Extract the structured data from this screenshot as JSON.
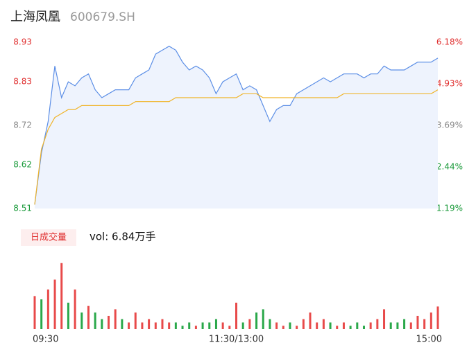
{
  "chart_data": {
    "type": "intraday",
    "title": "上海凤凰",
    "subtitle": "600679.SH",
    "categories": [
      "09:30",
      null,
      null,
      null,
      null,
      null,
      null,
      null,
      null,
      null,
      null,
      null,
      null,
      null,
      null,
      null,
      null,
      null,
      null,
      null,
      null,
      null,
      null,
      null,
      null,
      null,
      null,
      null,
      null,
      null,
      "11:30/13:00",
      null,
      null,
      null,
      null,
      null,
      null,
      null,
      null,
      null,
      null,
      null,
      null,
      null,
      null,
      null,
      null,
      null,
      null,
      null,
      null,
      null,
      null,
      null,
      null,
      null,
      null,
      null,
      null,
      null,
      "15:00"
    ],
    "series": [
      {
        "color": "#5b8ee6",
        "values": [
          8.52,
          8.65,
          8.73,
          8.87,
          8.79,
          8.83,
          8.82,
          8.84,
          8.85,
          8.81,
          8.79,
          8.8,
          8.81,
          8.81,
          8.81,
          8.84,
          8.85,
          8.86,
          8.9,
          8.91,
          8.92,
          8.91,
          8.88,
          8.86,
          8.87,
          8.86,
          8.84,
          8.8,
          8.83,
          8.84,
          8.85,
          8.81,
          8.82,
          8.81,
          8.77,
          8.73,
          8.76,
          8.77,
          8.77,
          8.8,
          8.81,
          8.82,
          8.83,
          8.84,
          8.83,
          8.84,
          8.85,
          8.85,
          8.85,
          8.84,
          8.85,
          8.85,
          8.87,
          8.86,
          8.86,
          8.86,
          8.87,
          8.88,
          8.88,
          8.88,
          8.89
        ]
      },
      {
        "color": "#f0b429",
        "values": [
          8.52,
          8.66,
          8.71,
          8.74,
          8.75,
          8.76,
          8.76,
          8.77,
          8.77,
          8.77,
          8.77,
          8.77,
          8.77,
          8.77,
          8.77,
          8.78,
          8.78,
          8.78,
          8.78,
          8.78,
          8.78,
          8.79,
          8.79,
          8.79,
          8.79,
          8.79,
          8.79,
          8.79,
          8.79,
          8.79,
          8.79,
          8.8,
          8.8,
          8.8,
          8.79,
          8.79,
          8.79,
          8.79,
          8.79,
          8.79,
          8.79,
          8.79,
          8.79,
          8.79,
          8.79,
          8.79,
          8.8,
          8.8,
          8.8,
          8.8,
          8.8,
          8.8,
          8.8,
          8.8,
          8.8,
          8.8,
          8.8,
          8.8,
          8.8,
          8.8,
          8.81
        ]
      }
    ],
    "ylim": [
      8.51,
      8.93
    ],
    "yticks": [
      8.93,
      8.83,
      8.72,
      8.62,
      8.51
    ],
    "ytick_colors": [
      "#e03030",
      "#e03030",
      "#888888",
      "#1a9a3a",
      "#1a9a3a"
    ],
    "y2lim": [
      1.19,
      6.18
    ],
    "y2ticks": [
      {
        "value": 6.18,
        "label": "6.18%"
      },
      {
        "value": 4.93,
        "label": "4.93%"
      },
      {
        "value": 3.69,
        "label": "3.69%"
      },
      {
        "value": 2.44,
        "label": "2.44%"
      },
      {
        "value": 1.19,
        "label": "1.19%"
      }
    ],
    "volume_button": "日成交量",
    "volume_label": "vol: 6.84万手",
    "volume_ylim": [
      0,
      21
    ],
    "volume": [
      10,
      9,
      12,
      15,
      20,
      8,
      12,
      5,
      7,
      5,
      3,
      4,
      6,
      3,
      2,
      5,
      2,
      3,
      2,
      3,
      2,
      2,
      1,
      2,
      1,
      2,
      2,
      3,
      2,
      1,
      8,
      2,
      3,
      5,
      6,
      3,
      2,
      1,
      2,
      1,
      3,
      5,
      2,
      3,
      2,
      1,
      2,
      1,
      2,
      1,
      2,
      3,
      6,
      2,
      2,
      3,
      2,
      4,
      3,
      5,
      6.84
    ],
    "volume_colors": [
      "#e84a4a",
      "#2aa84a",
      "#e84a4a",
      "#e84a4a",
      "#e84a4a",
      "#2aa84a",
      "#e84a4a",
      "#2aa84a",
      "#e84a4a",
      "#2aa84a",
      "#2aa84a",
      "#e84a4a",
      "#e84a4a",
      "#2aa84a",
      "#e84a4a",
      "#e84a4a",
      "#e84a4a",
      "#e84a4a",
      "#e84a4a",
      "#e84a4a",
      "#e84a4a",
      "#2aa84a",
      "#2aa84a",
      "#2aa84a",
      "#e84a4a",
      "#2aa84a",
      "#2aa84a",
      "#2aa84a",
      "#e84a4a",
      "#e84a4a",
      "#e84a4a",
      "#2aa84a",
      "#e84a4a",
      "#2aa84a",
      "#2aa84a",
      "#2aa84a",
      "#e84a4a",
      "#e84a4a",
      "#2aa84a",
      "#e84a4a",
      "#e84a4a",
      "#e84a4a",
      "#e84a4a",
      "#e84a4a",
      "#2aa84a",
      "#e84a4a",
      "#e84a4a",
      "#2aa84a",
      "#2aa84a",
      "#2aa84a",
      "#e84a4a",
      "#e84a4a",
      "#e84a4a",
      "#2aa84a",
      "#2aa84a",
      "#2aa84a",
      "#e84a4a",
      "#e84a4a",
      "#e84a4a",
      "#e84a4a",
      "#e84a4a"
    ]
  }
}
